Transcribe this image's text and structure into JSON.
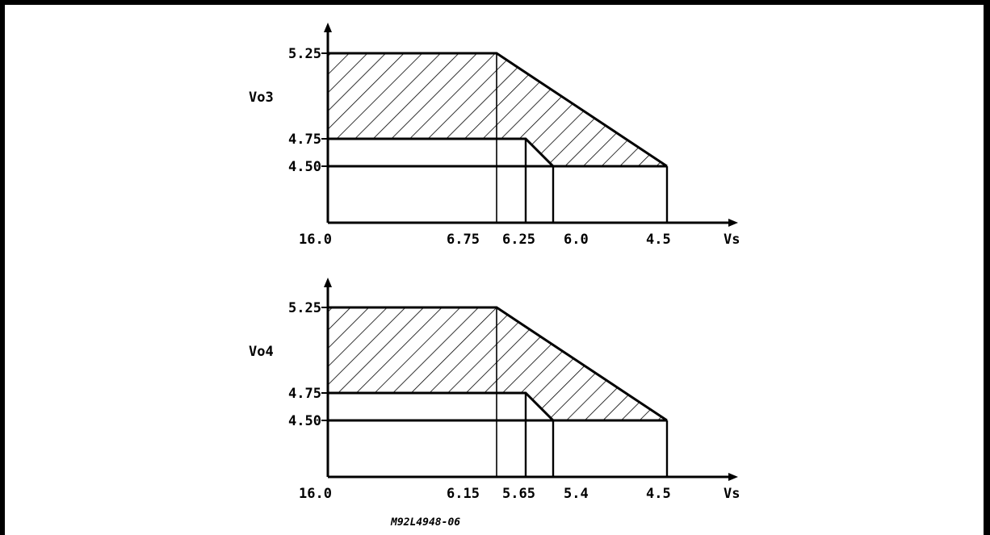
{
  "diagram_code": "M92L4948-06",
  "panels": [
    {
      "id": "top",
      "y_label": "Vo3",
      "x_label": "Vs",
      "y_ticks": [
        "5.25",
        "4.75",
        "4.50"
      ],
      "x_ticks": [
        "16.0",
        "6.75",
        "6.25",
        "6.0",
        "4.5"
      ]
    },
    {
      "id": "bottom",
      "y_label": "Vo4",
      "x_label": "Vs",
      "y_ticks": [
        "5.25",
        "4.75",
        "4.50"
      ],
      "x_ticks": [
        "16.0",
        "6.15",
        "5.65",
        "5.4",
        "4.5"
      ]
    }
  ]
}
